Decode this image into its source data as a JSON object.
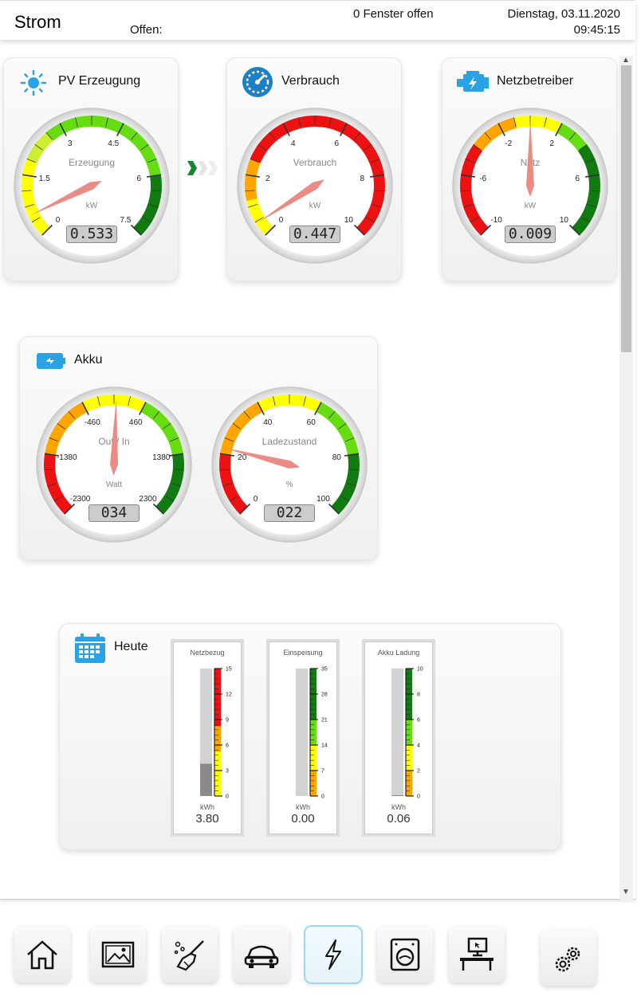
{
  "header": {
    "title": "Strom",
    "open_label": "Offen:",
    "windows_status": "0 Fenster offen",
    "date": "Dienstag, 03.11.2020",
    "time": "09:45:15"
  },
  "cards": {
    "pv": {
      "title": "PV Erzeugung",
      "icon": "sun-icon"
    },
    "consumption": {
      "title": "Verbrauch",
      "icon": "speedometer-icon"
    },
    "grid": {
      "title": "Netzbetreiber",
      "icon": "engine-icon"
    },
    "battery": {
      "title": "Akku",
      "icon": "battery-charging-icon"
    },
    "today": {
      "title": "Heute",
      "icon": "calendar-icon"
    }
  },
  "gauges": {
    "pv": {
      "label": "Erzeugung",
      "unit": "kW",
      "value": 0.533,
      "display": "0.533",
      "min": 0,
      "max": 7.5,
      "ticks": [
        "0",
        "1.5",
        "3",
        "4.5",
        "6",
        "7.5"
      ],
      "zones": [
        [
          "#ffff00",
          0,
          0.25
        ],
        [
          "#ccee33",
          0.25,
          0.35
        ],
        [
          "#66dd11",
          0.35,
          0.8
        ],
        [
          "#117a11",
          0.8,
          1
        ]
      ]
    },
    "consumption": {
      "label": "Verbrauch",
      "unit": "kW",
      "value": 0.447,
      "display": "0.447",
      "min": 0,
      "max": 10,
      "ticks": [
        "0",
        "2",
        "4",
        "6",
        "8",
        "10"
      ],
      "zones": [
        [
          "#ffff00",
          0,
          0.12
        ],
        [
          "#ffa500",
          0.12,
          0.25
        ],
        [
          "#ee1111",
          0.25,
          1
        ]
      ]
    },
    "grid": {
      "label": "Netz",
      "unit": "kW",
      "value": 0.009,
      "display": "0.009",
      "min": -10,
      "max": 10,
      "ticks": [
        "-10",
        "-6",
        "-2",
        "2",
        "6",
        "10"
      ],
      "zones": [
        [
          "#ee1111",
          0,
          0.3
        ],
        [
          "#ffa500",
          0.3,
          0.45
        ],
        [
          "#ffff00",
          0.45,
          0.6
        ],
        [
          "#66dd11",
          0.6,
          0.7
        ],
        [
          "#117a11",
          0.7,
          1
        ]
      ]
    },
    "battery_power": {
      "label": "Out / In",
      "unit": "Watt",
      "value": 34,
      "display": "034",
      "min": -2300,
      "max": 2300,
      "ticks": [
        "-2300",
        "-1380",
        "-460",
        "460",
        "1380",
        "2300"
      ],
      "zones": [
        [
          "#ee1111",
          0,
          0.2
        ],
        [
          "#ffa500",
          0.2,
          0.4
        ],
        [
          "#ffff00",
          0.4,
          0.6
        ],
        [
          "#66dd11",
          0.6,
          0.8
        ],
        [
          "#117a11",
          0.8,
          1
        ]
      ]
    },
    "battery_soc": {
      "label": "Ladezustand",
      "unit": "%",
      "value": 22,
      "display": "022",
      "min": 0,
      "max": 100,
      "ticks": [
        "0",
        "20",
        "40",
        "60",
        "80",
        "100"
      ],
      "zones": [
        [
          "#ee1111",
          0,
          0.2
        ],
        [
          "#ffa500",
          0.2,
          0.4
        ],
        [
          "#ffff00",
          0.4,
          0.6
        ],
        [
          "#66dd11",
          0.6,
          0.8
        ],
        [
          "#117a11",
          0.8,
          1
        ]
      ]
    }
  },
  "today_bars": [
    {
      "title": "Netzbezug",
      "unit": "kWh",
      "value": 3.8,
      "display": "3.80",
      "max": 15,
      "ticks": [
        "0",
        "3",
        "6",
        "9",
        "12",
        "15"
      ],
      "zones": [
        [
          "#ffff00",
          0,
          0.35
        ],
        [
          "#ffa500",
          0.35,
          0.55
        ],
        [
          "#ee1111",
          0.55,
          1
        ]
      ]
    },
    {
      "title": "Einspeisung",
      "unit": "kWh",
      "value": 0.0,
      "display": "0.00",
      "max": 35,
      "ticks": [
        "0",
        "7",
        "14",
        "21",
        "28",
        "35"
      ],
      "zones": [
        [
          "#ffa500",
          0,
          0.2
        ],
        [
          "#ffff00",
          0.2,
          0.4
        ],
        [
          "#66dd11",
          0.4,
          0.6
        ],
        [
          "#117a11",
          0.6,
          1
        ]
      ]
    },
    {
      "title": "Akku Ladung",
      "unit": "kWh",
      "value": 0.06,
      "display": "0.06",
      "max": 10,
      "ticks": [
        "0",
        "2",
        "4",
        "6",
        "8",
        "10"
      ],
      "zones": [
        [
          "#ffa500",
          0,
          0.2
        ],
        [
          "#ffff00",
          0.2,
          0.4
        ],
        [
          "#66dd11",
          0.4,
          0.6
        ],
        [
          "#117a11",
          0.6,
          1
        ]
      ]
    }
  ],
  "nav": [
    {
      "name": "nav-home",
      "icon": "home-icon"
    },
    {
      "name": "nav-gallery",
      "icon": "picture-icon"
    },
    {
      "name": "nav-cleaning",
      "icon": "broom-icon"
    },
    {
      "name": "nav-car",
      "icon": "car-icon"
    },
    {
      "name": "nav-power",
      "icon": "lightning-icon",
      "active": true
    },
    {
      "name": "nav-laundry",
      "icon": "washing-machine-icon"
    },
    {
      "name": "nav-office",
      "icon": "computer-desk-icon"
    },
    {
      "name": "nav-settings",
      "icon": "gears-icon"
    }
  ]
}
